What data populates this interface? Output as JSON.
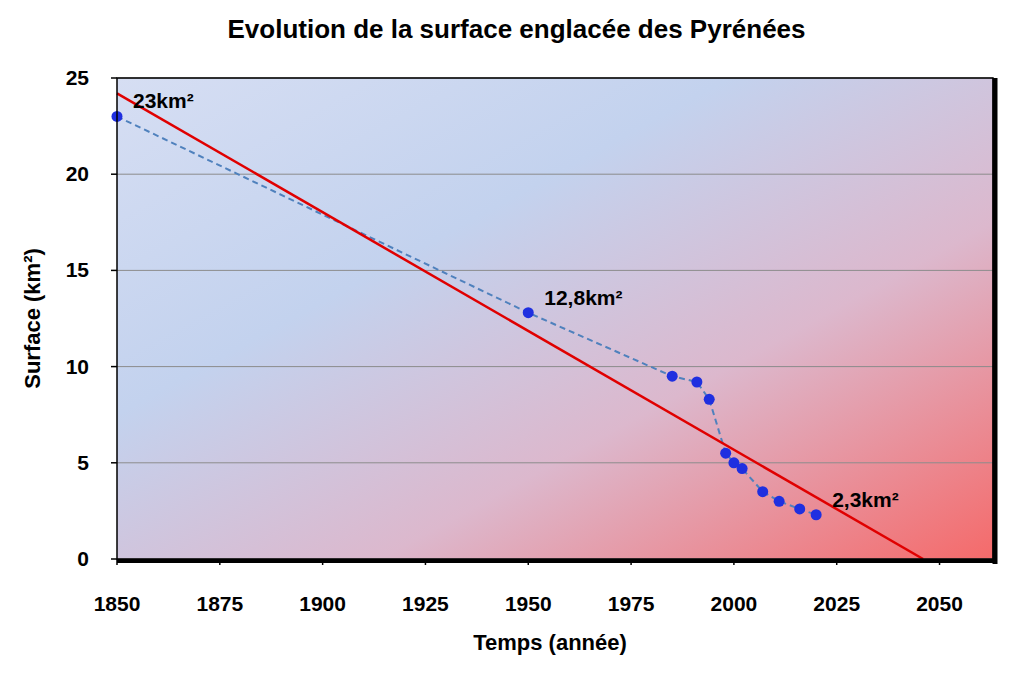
{
  "chart_data": {
    "type": "line",
    "title": "Evolution de la surface englacée des Pyrénées",
    "x_label": "Temps (année)",
    "y_label": "Surface (km²)",
    "xlim": [
      1850,
      2063
    ],
    "ylim": [
      0,
      25
    ],
    "xticks": [
      1850,
      1875,
      1900,
      1925,
      1950,
      1975,
      2000,
      2025,
      2050
    ],
    "yticks": [
      0,
      5,
      10,
      15,
      20,
      25
    ],
    "grid": true,
    "series": [
      {
        "type": "line",
        "color": "#4f81bd",
        "marker": "circle",
        "line_style": "dashed",
        "x": [
          1850,
          1950,
          1985,
          1991,
          1994,
          1998,
          2000,
          2002,
          2007,
          2011,
          2016,
          2020
        ],
        "values": [
          23,
          12.8,
          9.5,
          9.2,
          8.3,
          5.5,
          5.0,
          4.7,
          3.5,
          3.0,
          2.6,
          2.3
        ]
      },
      {
        "type": "line",
        "color": "#e00000",
        "line_style": "solid",
        "x": [
          1850,
          2046
        ],
        "values": [
          24.2,
          0
        ]
      }
    ],
    "annotations": [
      {
        "text": "23km²",
        "x": 1850,
        "y": 23
      },
      {
        "text": "12,8km²",
        "x": 1950,
        "y": 12.8
      },
      {
        "text": "2,3km²",
        "x": 2020,
        "y": 2.3
      }
    ]
  }
}
